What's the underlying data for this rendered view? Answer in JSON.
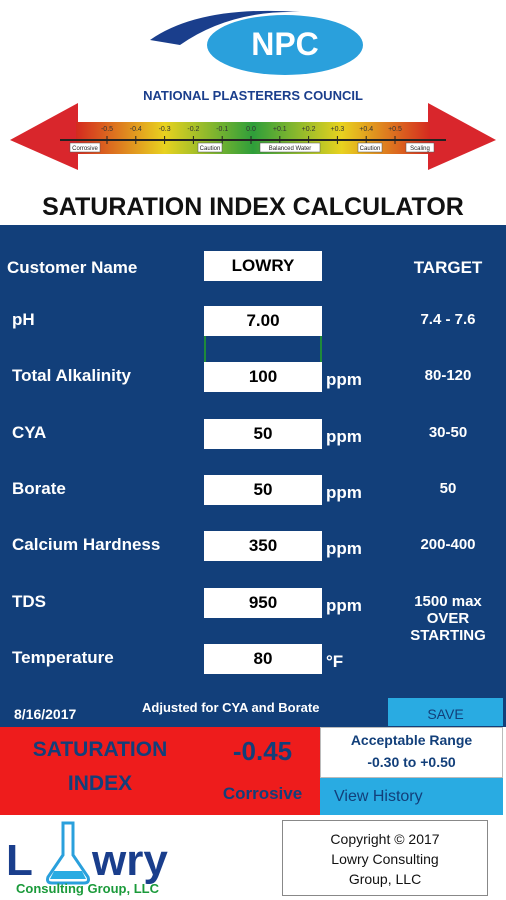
{
  "header": {
    "logo": "NPC",
    "organization": "NATIONAL PLASTERERS COUNCIL",
    "scale": {
      "ticks": [
        "-0.5",
        "-0.4",
        "-0.3",
        "-0.2",
        "-0.1",
        "0.0",
        "+0.1",
        "+0.2",
        "+0.3",
        "+0.4",
        "+0.5"
      ],
      "zones": [
        "Corrosive",
        "Caution",
        "Balanced Water",
        "Caution",
        "Scaling"
      ]
    },
    "title": "SATURATION INDEX CALCULATOR"
  },
  "form": {
    "customer": {
      "label": "Customer Name",
      "value": "LOWRY"
    },
    "target_header": "TARGET",
    "rows": [
      {
        "label": "pH",
        "value": "7.00",
        "target": [
          "7.4 - 7.6"
        ]
      },
      {
        "label": "Total Alkalinity",
        "value": "100",
        "unit": "ppm",
        "target": [
          "80-120"
        ]
      },
      {
        "label": "CYA",
        "value": "50",
        "unit": "ppm",
        "target": [
          "30-50"
        ]
      },
      {
        "label": "Borate",
        "value": "50",
        "unit": "ppm",
        "target": [
          "50"
        ]
      },
      {
        "label": "Calcium Hardness",
        "value": "350",
        "unit": "ppm",
        "target": [
          "200-400"
        ]
      },
      {
        "label": "TDS",
        "value": "950",
        "unit": "ppm",
        "target": [
          "1500 max",
          "OVER",
          "STARTING"
        ]
      },
      {
        "label": "Temperature",
        "value": "80",
        "unit": "°F"
      }
    ]
  },
  "status_bar": {
    "date": "8/16/2017",
    "note": "Adjusted for CYA and Borate",
    "save_button": "SAVE"
  },
  "result": {
    "label_lines": [
      "SATURATION",
      "INDEX"
    ],
    "value": "-0.45",
    "status": "Corrosive",
    "range_label": "Acceptable Range",
    "range": "-0.30 to +0.50",
    "history_button": "View History"
  },
  "footer": {
    "company_logo": {
      "name_parts": [
        "L",
        "wry"
      ],
      "tagline": "Consulting Group, LLC"
    },
    "copyright": [
      "Copyright © 2017",
      "Lowry Consulting",
      "Group, LLC"
    ]
  }
}
